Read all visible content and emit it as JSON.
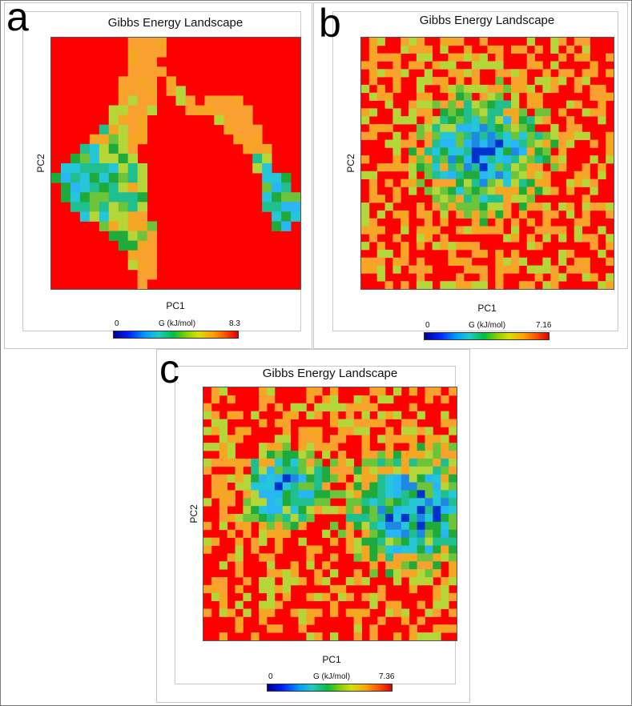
{
  "colors": {
    "high": "#ff0000",
    "palette": [
      "#0033cc",
      "#1e88e5",
      "#29b6f6",
      "#26c6da",
      "#1fbf8f",
      "#1faa3c",
      "#6cc43a",
      "#b5d639",
      "#f5a623",
      "#f9a030"
    ]
  },
  "panels": [
    {
      "letter": "a",
      "title": "Gibbs Energy Landscape",
      "xlabel": "PC1",
      "ylabel": "PC2",
      "colorbar": {
        "min": "0",
        "max": "8.3",
        "label": "G (kJ/mol)"
      }
    },
    {
      "letter": "b",
      "title": "Gibbs Energy Landscape",
      "xlabel": "PC1",
      "ylabel": "PC2",
      "colorbar": {
        "min": "0",
        "max": "7.16",
        "label": "G (kJ/mol)"
      }
    },
    {
      "letter": "c",
      "title": "Gibbs Energy Landscape",
      "xlabel": "PC1",
      "ylabel": "PC2",
      "colorbar": {
        "min": "0",
        "max": "7.36",
        "label": "G (kJ/mol)"
      }
    }
  ],
  "chart_data": [
    {
      "type": "heatmap",
      "title": "Gibbs Energy Landscape",
      "xlabel": "PC1",
      "ylabel": "PC2",
      "colorbar_label": "G (kJ/mol)",
      "zlim": [
        0,
        8.3
      ],
      "grid": [
        26,
        26
      ],
      "minima": [
        {
          "col": 3,
          "row": 15,
          "value": 0.2
        },
        {
          "col": 23,
          "row": 17,
          "value": 0.6
        }
      ],
      "note_regions": "inverted-U basin: left arm plus arch to right arm",
      "low_energy_cells": [
        [
          8,
          0
        ],
        [
          9,
          0
        ],
        [
          10,
          0
        ],
        [
          11,
          0
        ],
        [
          8,
          1
        ],
        [
          9,
          1
        ],
        [
          10,
          1
        ],
        [
          11,
          1
        ],
        [
          8,
          2
        ],
        [
          9,
          2
        ],
        [
          10,
          2
        ],
        [
          8,
          3
        ],
        [
          9,
          3
        ],
        [
          10,
          3
        ],
        [
          11,
          3
        ],
        [
          7,
          4
        ],
        [
          8,
          4
        ],
        [
          9,
          4
        ],
        [
          10,
          4
        ],
        [
          12,
          4
        ],
        [
          7,
          5
        ],
        [
          8,
          5
        ],
        [
          9,
          5
        ],
        [
          10,
          5
        ],
        [
          12,
          5
        ],
        [
          13,
          5
        ],
        [
          7,
          6
        ],
        [
          8,
          6
        ],
        [
          9,
          6
        ],
        [
          10,
          6
        ],
        [
          13,
          6
        ],
        [
          14,
          6
        ],
        [
          16,
          6
        ],
        [
          17,
          6
        ],
        [
          18,
          6
        ],
        [
          19,
          6
        ],
        [
          6,
          7
        ],
        [
          7,
          7
        ],
        [
          8,
          7
        ],
        [
          9,
          7
        ],
        [
          10,
          7
        ],
        [
          14,
          7
        ],
        [
          15,
          7
        ],
        [
          16,
          7
        ],
        [
          17,
          7
        ],
        [
          18,
          7
        ],
        [
          19,
          7
        ],
        [
          20,
          7
        ],
        [
          6,
          8
        ],
        [
          7,
          8
        ],
        [
          8,
          8
        ],
        [
          9,
          8
        ],
        [
          17,
          8
        ],
        [
          18,
          8
        ],
        [
          19,
          8
        ],
        [
          20,
          8
        ],
        [
          5,
          9
        ],
        [
          6,
          9
        ],
        [
          7,
          9
        ],
        [
          8,
          9
        ],
        [
          9,
          9
        ],
        [
          18,
          9
        ],
        [
          19,
          9
        ],
        [
          20,
          9
        ],
        [
          21,
          9
        ],
        [
          4,
          10
        ],
        [
          5,
          10
        ],
        [
          6,
          10
        ],
        [
          7,
          10
        ],
        [
          8,
          10
        ],
        [
          9,
          10
        ],
        [
          19,
          10
        ],
        [
          20,
          10
        ],
        [
          21,
          10
        ],
        [
          3,
          11
        ],
        [
          4,
          11
        ],
        [
          5,
          11
        ],
        [
          6,
          11
        ],
        [
          7,
          11
        ],
        [
          8,
          11
        ],
        [
          20,
          11
        ],
        [
          21,
          11
        ],
        [
          22,
          11
        ],
        [
          2,
          12
        ],
        [
          3,
          12
        ],
        [
          4,
          12
        ],
        [
          5,
          12
        ],
        [
          6,
          12
        ],
        [
          7,
          12
        ],
        [
          8,
          12
        ],
        [
          21,
          12
        ],
        [
          22,
          12
        ],
        [
          1,
          13
        ],
        [
          2,
          13
        ],
        [
          3,
          13
        ],
        [
          4,
          13
        ],
        [
          5,
          13
        ],
        [
          6,
          13
        ],
        [
          7,
          13
        ],
        [
          8,
          13
        ],
        [
          9,
          13
        ],
        [
          21,
          13
        ],
        [
          22,
          13
        ],
        [
          0,
          14
        ],
        [
          1,
          14
        ],
        [
          2,
          14
        ],
        [
          3,
          14
        ],
        [
          4,
          14
        ],
        [
          5,
          14
        ],
        [
          6,
          14
        ],
        [
          7,
          14
        ],
        [
          8,
          14
        ],
        [
          9,
          14
        ],
        [
          22,
          14
        ],
        [
          23,
          14
        ],
        [
          24,
          14
        ],
        [
          1,
          15
        ],
        [
          2,
          15
        ],
        [
          3,
          15
        ],
        [
          4,
          15
        ],
        [
          5,
          15
        ],
        [
          6,
          15
        ],
        [
          7,
          15
        ],
        [
          8,
          15
        ],
        [
          9,
          15
        ],
        [
          22,
          15
        ],
        [
          23,
          15
        ],
        [
          24,
          15
        ],
        [
          1,
          16
        ],
        [
          2,
          16
        ],
        [
          3,
          16
        ],
        [
          4,
          16
        ],
        [
          5,
          16
        ],
        [
          6,
          16
        ],
        [
          7,
          16
        ],
        [
          8,
          16
        ],
        [
          9,
          16
        ],
        [
          22,
          16
        ],
        [
          23,
          16
        ],
        [
          24,
          16
        ],
        [
          25,
          16
        ],
        [
          2,
          17
        ],
        [
          3,
          17
        ],
        [
          4,
          17
        ],
        [
          5,
          17
        ],
        [
          6,
          17
        ],
        [
          7,
          17
        ],
        [
          8,
          17
        ],
        [
          9,
          17
        ],
        [
          22,
          17
        ],
        [
          23,
          17
        ],
        [
          24,
          17
        ],
        [
          25,
          17
        ],
        [
          3,
          18
        ],
        [
          4,
          18
        ],
        [
          5,
          18
        ],
        [
          6,
          18
        ],
        [
          7,
          18
        ],
        [
          8,
          18
        ],
        [
          9,
          18
        ],
        [
          23,
          18
        ],
        [
          24,
          18
        ],
        [
          25,
          18
        ],
        [
          5,
          19
        ],
        [
          6,
          19
        ],
        [
          7,
          19
        ],
        [
          8,
          19
        ],
        [
          9,
          19
        ],
        [
          10,
          19
        ],
        [
          23,
          19
        ],
        [
          24,
          19
        ],
        [
          6,
          20
        ],
        [
          7,
          20
        ],
        [
          8,
          20
        ],
        [
          9,
          20
        ],
        [
          10,
          20
        ],
        [
          7,
          21
        ],
        [
          8,
          21
        ],
        [
          9,
          21
        ],
        [
          10,
          21
        ],
        [
          8,
          22
        ],
        [
          9,
          22
        ],
        [
          10,
          22
        ],
        [
          8,
          23
        ],
        [
          9,
          23
        ],
        [
          10,
          23
        ],
        [
          9,
          24
        ],
        [
          10,
          24
        ],
        [
          9,
          25
        ]
      ]
    },
    {
      "type": "heatmap",
      "title": "Gibbs Energy Landscape",
      "xlabel": "PC1",
      "ylabel": "PC2",
      "colorbar_label": "G (kJ/mol)",
      "zlim": [
        0,
        7.16
      ],
      "grid": [
        32,
        32
      ],
      "minima": [
        {
          "col": 15,
          "row": 14,
          "value": 0.1
        }
      ],
      "note_regions": "single broad basin centred slightly left of middle"
    },
    {
      "type": "heatmap",
      "title": "Gibbs Energy Landscape",
      "xlabel": "PC1",
      "ylabel": "PC2",
      "colorbar_label": "G (kJ/mol)",
      "zlim": [
        0,
        7.36
      ],
      "grid": [
        32,
        32
      ],
      "minima": [
        {
          "col": 26,
          "row": 15,
          "value": 0.1
        },
        {
          "col": 10,
          "row": 12,
          "value": 0.8
        }
      ],
      "note_regions": "large left-centre basin plus smaller right basin"
    }
  ]
}
